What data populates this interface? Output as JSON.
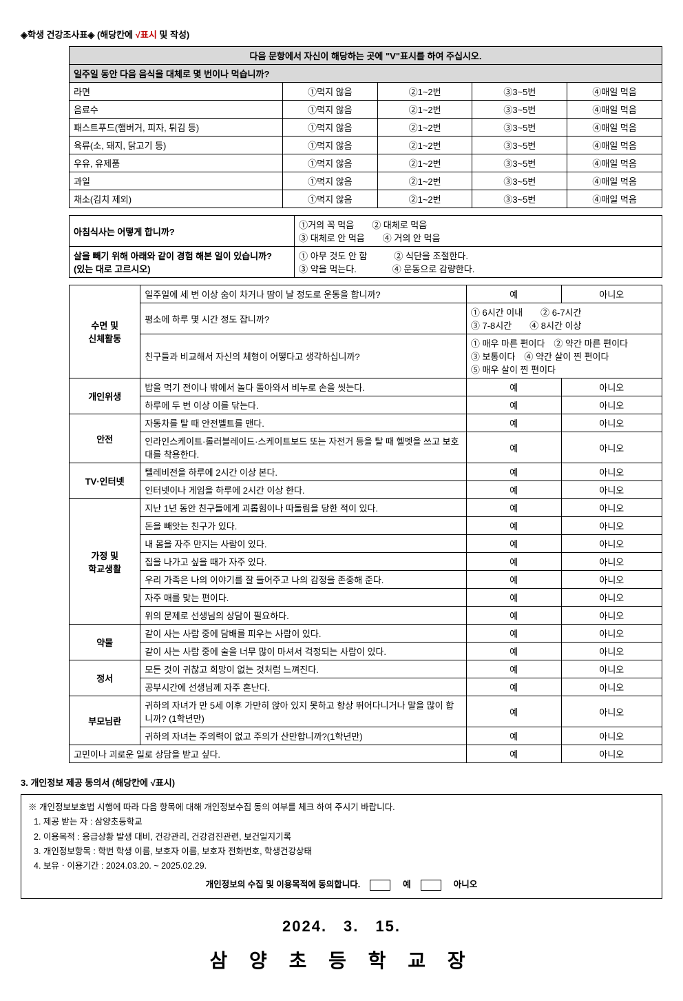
{
  "header": {
    "title_prefix": "◈학생 건강조사표◈ (해당칸에 ",
    "title_red": "√표시",
    "title_suffix": " 및 작성)"
  },
  "table1": {
    "instruction": "다음 문항에서 자신이 해당하는 곳에 \"V\"표시를 하여 주십시오.",
    "question_header": "일주일 동안 다음 음식을 대체로 몇 번이나 먹습니까?",
    "opts": [
      "①먹지 않음",
      "②1~2번",
      "③3~5번",
      "④매일 먹음"
    ],
    "rows": [
      "라면",
      "음료수",
      "패스트푸드(햄버거, 피자, 튀김 등)",
      "육류(소, 돼지, 닭고기 등)",
      "우유, 유제품",
      "과일",
      "채소(김치 제외)"
    ]
  },
  "table2": {
    "r1_q": "아침식사는 어떻게 합니까?",
    "r1_opts": "①거의 꼭 먹음　　② 대체로 먹음\n③ 대체로 안 먹음　　④ 거의 안 먹음",
    "r2_q": "살을 빼기 위해 아래와 같이 경험 해본 일이 있습니까?\n(있는 대로 고르시오)",
    "r2_opts": "① 아무 것도 안 함　　　② 식단을 조절한다.\n③ 약을 먹는다.　　　　④ 운동으로 감량한다."
  },
  "table3": {
    "yes": "예",
    "no": "아니오",
    "groups": [
      {
        "cat": "수면 및\n신체활동",
        "rows": [
          {
            "q": "일주일에 세 번 이상 숨이 차거나 땀이 날 정도로 운동을 합니까?",
            "type": "yn"
          },
          {
            "q": "평소에 하루 몇 시간 정도 잡니까?",
            "type": "opts",
            "opts": "① 6시간 이내　　② 6-7시간\n③ 7-8시간　　④ 8시간 이상"
          },
          {
            "q": "친구들과 비교해서 자신의 체형이 어떻다고 생각하십니까?",
            "type": "opts",
            "opts": "① 매우 마른 편이다　② 약간 마른 편이다\n③ 보통이다　④ 약간 살이 찐 편이다\n⑤ 매우 살이 찐 편이다"
          }
        ]
      },
      {
        "cat": "개인위생",
        "rows": [
          {
            "q": "밥을 먹기 전이나 밖에서 놀다 돌아와서 비누로 손을 씻는다.",
            "type": "yn"
          },
          {
            "q": "하루에 두 번 이상 이를 닦는다.",
            "type": "yn"
          }
        ]
      },
      {
        "cat": "안전",
        "rows": [
          {
            "q": "자동차를 탈 때 안전벨트를 맨다.",
            "type": "yn"
          },
          {
            "q": "인라인스케이트·롤러블레이드·스케이트보드 또는 자전거 등을 탈 때 헬멧을 쓰고 보호대를 착용한다.",
            "type": "yn"
          }
        ]
      },
      {
        "cat": "TV·인터넷",
        "rows": [
          {
            "q": "텔레비전을 하루에 2시간 이상 본다.",
            "type": "yn"
          },
          {
            "q": "인터넷이나 게임을 하루에 2시간 이상 한다.",
            "type": "yn"
          }
        ]
      },
      {
        "cat": "가정 및\n학교생활",
        "rows": [
          {
            "q": "지난 1년 동안 친구들에게 괴롭힘이나 따돌림을 당한 적이 있다.",
            "type": "yn"
          },
          {
            "q": "돈을 빼앗는 친구가 있다.",
            "type": "yn"
          },
          {
            "q": "내 몸을 자주 만지는 사람이 있다.",
            "type": "yn"
          },
          {
            "q": "집을 나가고 싶을 때가 자주 있다.",
            "type": "yn"
          },
          {
            "q": "우리 가족은 나의 이야기를 잘 들어주고 나의 감정을 존중해 준다.",
            "type": "yn"
          },
          {
            "q": "자주 매를 맞는 편이다.",
            "type": "yn"
          },
          {
            "q": "위의 문제로 선생님의 상담이 필요하다.",
            "type": "yn"
          }
        ]
      },
      {
        "cat": "약물",
        "rows": [
          {
            "q": "같이 사는 사람 중에 담배를 피우는 사람이 있다.",
            "type": "yn"
          },
          {
            "q": "같이 사는 사람 중에 술을 너무 많이 마셔서 걱정되는 사람이 있다.",
            "type": "yn"
          }
        ]
      },
      {
        "cat": "정서",
        "rows": [
          {
            "q": "모든 것이 귀찮고 희망이 없는 것처럼 느껴진다.",
            "type": "yn"
          },
          {
            "q": "공부시간에 선생님께 자주 혼난다.",
            "type": "yn"
          }
        ]
      },
      {
        "cat": "부모님란",
        "rows": [
          {
            "q": "귀하의 자녀가 만 5세 이후 가만히 앉아 있지 못하고 항상 뛰어다니거나 말을 많이 합니까? (1학년만)",
            "type": "yn"
          },
          {
            "q": "귀하의 자녀는 주의력이 없고 주의가 산만합니까?(1학년만)",
            "type": "yn"
          }
        ]
      }
    ],
    "final_row": "고민이나 괴로운 일로 상담을 받고 싶다."
  },
  "section3": {
    "title": "3. 개인정보 제공 동의서 (해당칸에 √표시)",
    "notice": "※ 개인정보보호법 시행에 따라 다음 항목에 대해 개인정보수집 동의 여부를 체크 하여 주시기 바랍니다.",
    "items": [
      "1. 제공 받는 자 : 삼양초등학교",
      "2. 이용목적 : 응급상황 발생 대비, 건강관리, 건강검진관련, 보건일지기록",
      "3. 개인정보항목 : 학번 학생 이름, 보호자 이름, 보호자 전화번호, 학생건강상태",
      "4. 보유ㆍ이용기간 : 2024.03.20. ~ 2025.02.29."
    ],
    "consent_text": "개인정보의 수집 및 이용목적에 동의합니다.",
    "yes": "예",
    "no": "아니오"
  },
  "footer": {
    "date": "2024.　3.　15.",
    "school": "삼 양 초 등 학 교 장"
  }
}
